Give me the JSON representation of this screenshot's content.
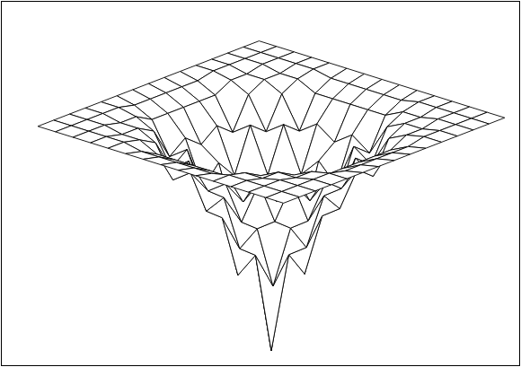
{
  "chart_data": {
    "type": "surface",
    "x": [
      0,
      1,
      2,
      3,
      4,
      5,
      6,
      7,
      8,
      9,
      10,
      11,
      12,
      13,
      14
    ],
    "y": [
      0,
      1,
      2,
      3,
      4,
      5,
      6,
      7,
      8,
      9,
      10,
      11,
      12,
      13,
      14
    ],
    "zlim": [
      -18,
      0
    ],
    "color": "#000000",
    "z": [
      [
        0,
        0,
        0,
        0,
        0,
        0,
        0,
        0,
        0,
        0,
        0,
        0,
        0,
        0,
        0
      ],
      [
        0,
        0,
        0,
        0,
        0,
        -0.3,
        -0.3,
        -0.3,
        -0.3,
        -0.3,
        0,
        0,
        0,
        0,
        0
      ],
      [
        0,
        0,
        0,
        -0.3,
        -0.3,
        -1,
        -1,
        -1,
        -1,
        -1,
        -0.3,
        -0.3,
        0,
        0,
        0
      ],
      [
        0,
        0,
        -0.3,
        -0.3,
        -1,
        -3.5,
        -2.5,
        -3.5,
        -2.5,
        -3.5,
        -1,
        -0.3,
        -0.3,
        0,
        0
      ],
      [
        0,
        0,
        -0.3,
        -1,
        -3.5,
        -2.5,
        -6,
        -4.5,
        -6,
        -2.5,
        -3.5,
        -1,
        -0.3,
        0,
        0
      ],
      [
        0,
        -0.3,
        -1,
        -3.5,
        -2.5,
        -6,
        -7,
        -9,
        -7,
        -6,
        -2.5,
        -3.5,
        -1,
        -0.3,
        0
      ],
      [
        0,
        -0.3,
        -1,
        -2.5,
        -6,
        -7,
        -12,
        -10,
        -12,
        -7,
        -6,
        -2.5,
        -1,
        -0.3,
        0
      ],
      [
        0,
        -0.3,
        -1,
        -3.5,
        -4.5,
        -9,
        -10,
        -18,
        -10,
        -9,
        -4.5,
        -3.5,
        -1,
        -0.3,
        0
      ],
      [
        0,
        -0.3,
        -1,
        -2.5,
        -6,
        -7,
        -12,
        -10,
        -12,
        -7,
        -6,
        -2.5,
        -1,
        -0.3,
        0
      ],
      [
        0,
        -0.3,
        -1,
        -3.5,
        -2.5,
        -6,
        -7,
        -9,
        -7,
        -6,
        -2.5,
        -3.5,
        -1,
        -0.3,
        0
      ],
      [
        0,
        0,
        -0.3,
        -1,
        -3.5,
        -2.5,
        -6,
        -4.5,
        -6,
        -2.5,
        -3.5,
        -1,
        -0.3,
        0,
        0
      ],
      [
        0,
        0,
        -0.3,
        -0.3,
        -1,
        -3.5,
        -2.5,
        -3.5,
        -2.5,
        -3.5,
        -1,
        -0.3,
        -0.3,
        0,
        0
      ],
      [
        0,
        0,
        0,
        -0.3,
        -0.3,
        -1,
        -1,
        -1,
        -1,
        -1,
        -0.3,
        -0.3,
        0,
        0,
        0
      ],
      [
        0,
        0,
        0,
        0,
        0,
        -0.3,
        -0.3,
        -0.3,
        -0.3,
        -0.3,
        0,
        0,
        0,
        0,
        0
      ],
      [
        0,
        0,
        0,
        0,
        0,
        0,
        0,
        0,
        0,
        0,
        0,
        0,
        0,
        0,
        0
      ]
    ]
  }
}
